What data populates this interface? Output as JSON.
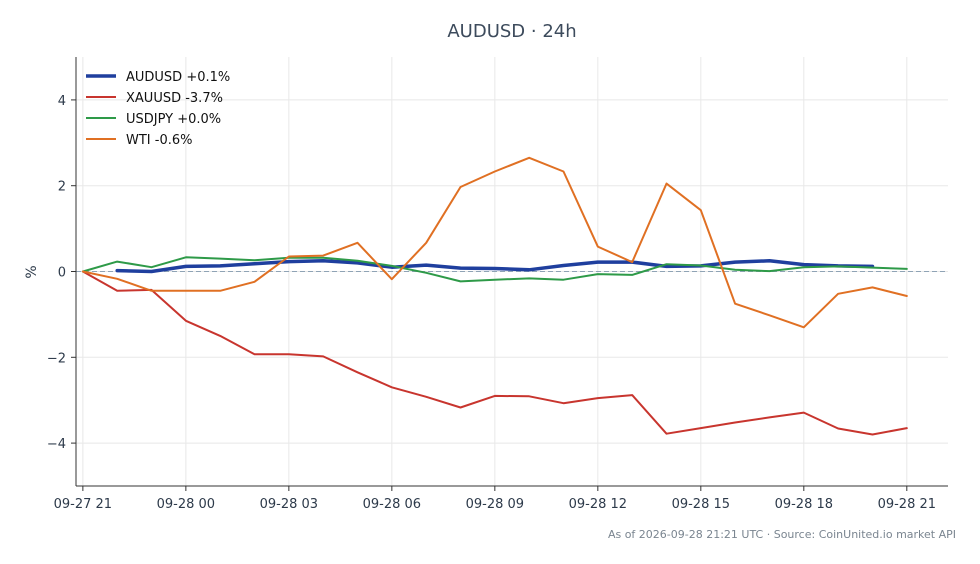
{
  "chart_data": {
    "type": "line",
    "title": "AUDUSD · 24h",
    "xlabel": "",
    "ylabel": "%",
    "xlim": [
      -0.2,
      25.2
    ],
    "ylim": [
      -5,
      5
    ],
    "grid": true,
    "legend_position": "top-left",
    "zero_line": true,
    "x_ticks": [
      {
        "x": 0,
        "label": "09-27 21"
      },
      {
        "x": 3,
        "label": "09-28 00"
      },
      {
        "x": 6,
        "label": "09-28 03"
      },
      {
        "x": 9,
        "label": "09-28 06"
      },
      {
        "x": 12,
        "label": "09-28 09"
      },
      {
        "x": 15,
        "label": "09-28 12"
      },
      {
        "x": 18,
        "label": "09-28 15"
      },
      {
        "x": 21,
        "label": "09-28 18"
      },
      {
        "x": 24,
        "label": "09-28 21"
      }
    ],
    "y_ticks": [
      {
        "y": 4,
        "label": "4"
      },
      {
        "y": 2,
        "label": "2"
      },
      {
        "y": 0,
        "label": "0"
      },
      {
        "y": -2,
        "label": "−2"
      },
      {
        "y": -4,
        "label": "−4"
      }
    ],
    "series": [
      {
        "name": "AUDUSD +0.1%",
        "color": "#1f3f9e",
        "width": 3.5,
        "x": [
          1,
          2,
          3,
          4,
          5,
          6,
          7,
          8,
          9,
          10,
          11,
          12,
          13,
          14,
          15,
          16,
          17,
          18,
          19,
          20,
          21,
          22,
          23
        ],
        "values": [
          0.02,
          0.0,
          0.12,
          0.13,
          0.18,
          0.23,
          0.25,
          0.2,
          0.1,
          0.15,
          0.08,
          0.07,
          0.04,
          0.14,
          0.22,
          0.22,
          0.12,
          0.13,
          0.22,
          0.25,
          0.16,
          0.13,
          0.12
        ]
      },
      {
        "name": "XAUUSD -3.7%",
        "color": "#c8352e",
        "width": 2,
        "x": [
          0,
          1,
          2,
          3,
          4,
          5,
          6,
          7,
          8,
          9,
          10,
          11,
          12,
          13,
          14,
          15,
          16,
          17,
          18,
          19,
          20,
          21,
          22,
          23,
          24
        ],
        "values": [
          0.0,
          -0.45,
          -0.43,
          -1.15,
          -1.5,
          -1.93,
          -1.93,
          -1.98,
          -2.35,
          -2.7,
          -2.92,
          -3.17,
          -2.9,
          -2.91,
          -3.07,
          -2.95,
          -2.88,
          -3.78,
          -3.65,
          -3.52,
          -3.4,
          -3.29,
          -3.66,
          -3.8,
          -3.65
        ]
      },
      {
        "name": "USDJPY +0.0%",
        "color": "#2e9a48",
        "width": 2,
        "x": [
          0,
          1,
          2,
          3,
          4,
          5,
          6,
          7,
          8,
          9,
          10,
          11,
          12,
          13,
          14,
          15,
          16,
          17,
          18,
          19,
          20,
          21,
          22,
          23,
          24
        ],
        "values": [
          0.0,
          0.23,
          0.1,
          0.33,
          0.3,
          0.26,
          0.32,
          0.32,
          0.25,
          0.13,
          -0.03,
          -0.23,
          -0.19,
          -0.16,
          -0.19,
          -0.06,
          -0.08,
          0.17,
          0.14,
          0.04,
          0.01,
          0.1,
          0.12,
          0.09,
          0.06
        ]
      },
      {
        "name": "WTI -0.6%",
        "color": "#e07023",
        "width": 2,
        "x": [
          0,
          1,
          2,
          3,
          4,
          5,
          6,
          7,
          8,
          9,
          10,
          11,
          12,
          13,
          14,
          15,
          16,
          17,
          18,
          19,
          20,
          21,
          22,
          23,
          24
        ],
        "values": [
          0.0,
          -0.17,
          -0.45,
          -0.45,
          -0.45,
          -0.24,
          0.35,
          0.37,
          0.67,
          -0.18,
          0.67,
          1.97,
          2.33,
          2.65,
          2.33,
          0.58,
          0.22,
          2.05,
          1.43,
          -0.75,
          -1.02,
          -1.3,
          -0.52,
          -0.37,
          -0.57
        ]
      }
    ],
    "source_note": "As of 2026-09-28 21:21 UTC · Source: CoinUnited.io market API"
  }
}
